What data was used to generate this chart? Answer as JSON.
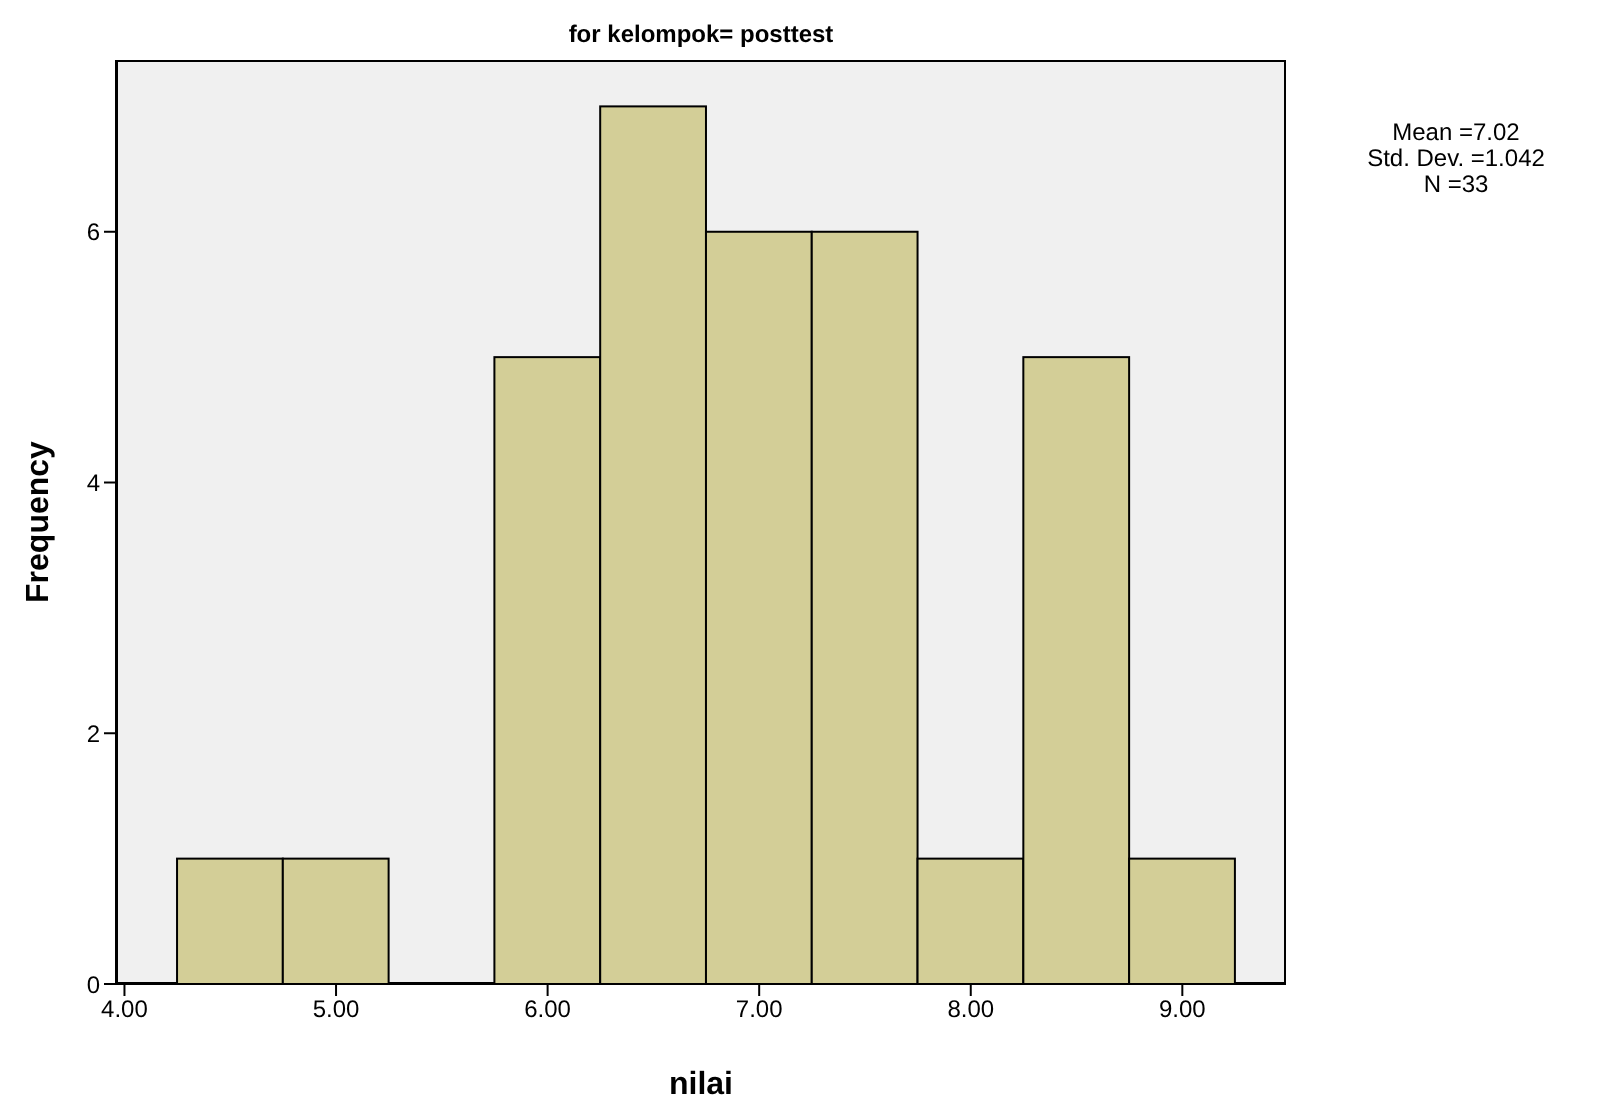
{
  "chart_data": {
    "type": "histogram",
    "title": "for kelompok= posttest",
    "xlabel": "nilai",
    "ylabel": "Frequency",
    "bins": [
      4.25,
      4.75,
      5.25,
      5.75,
      6.25,
      6.75,
      7.25,
      7.75,
      8.25,
      8.75,
      9.25
    ],
    "values": [
      1,
      1,
      0,
      5,
      7,
      6,
      6,
      1,
      5,
      1
    ],
    "color": "#d3ce97",
    "xlim": [
      3.96,
      9.49
    ],
    "xticks": [
      {
        "value": 4,
        "label": "4.00"
      },
      {
        "value": 5,
        "label": "5.00"
      },
      {
        "value": 6,
        "label": "6.00"
      },
      {
        "value": 7,
        "label": "7.00"
      },
      {
        "value": 8,
        "label": "8.00"
      },
      {
        "value": 9,
        "label": "9.00"
      }
    ],
    "ylim": [
      0,
      7.37
    ],
    "yticks": [
      0,
      2,
      4,
      6
    ],
    "annotations": [
      "Mean =7.02",
      "Std. Dev. =1.042",
      "N =33"
    ],
    "grid": false
  }
}
